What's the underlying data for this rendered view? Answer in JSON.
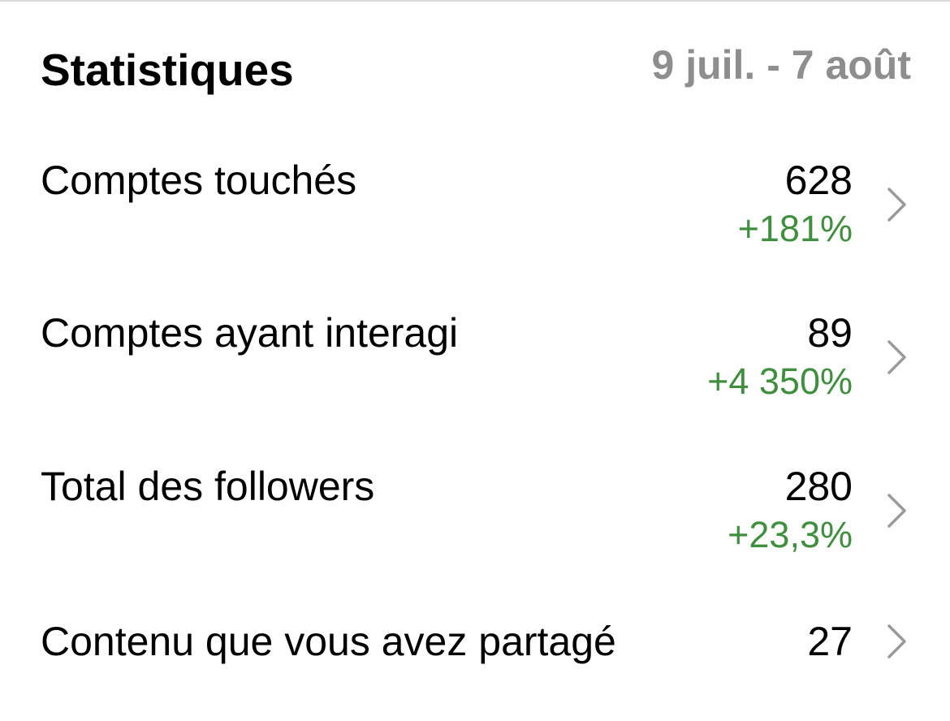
{
  "header": {
    "title": "Statistiques",
    "date_range": "9 juil. - 7 août"
  },
  "stats": [
    {
      "label": "Comptes touchés",
      "value": "628",
      "change": "+181%"
    },
    {
      "label": "Comptes ayant interagi",
      "value": "89",
      "change": "+4 350%"
    },
    {
      "label": "Total des followers",
      "value": "280",
      "change": "+23,3%"
    },
    {
      "label": "Contenu que vous avez partagé",
      "value": "27",
      "change": ""
    }
  ],
  "colors": {
    "positive": "#3f8f3f",
    "secondary_text": "#8e8e8e",
    "chevron": "#9a9a9a"
  },
  "icons": {
    "row_chevron": "chevron-right-icon"
  }
}
